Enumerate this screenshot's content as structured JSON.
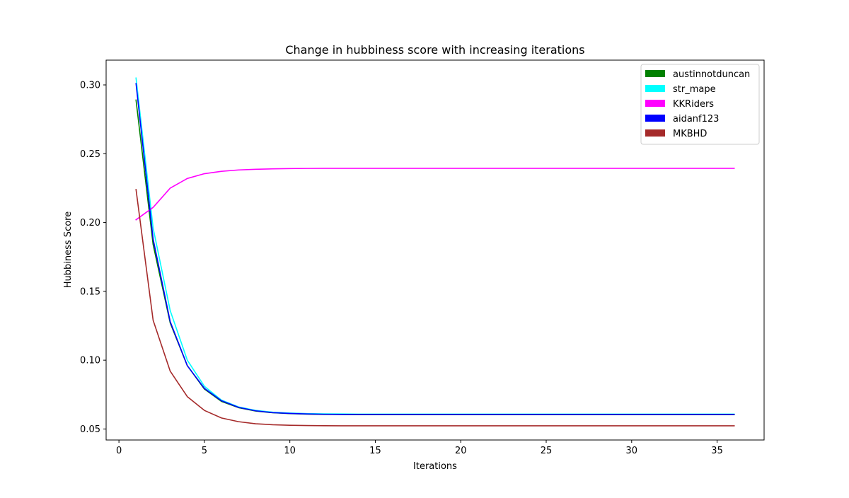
{
  "chart_data": {
    "type": "line",
    "title": "Change in hubbiness score with increasing iterations",
    "xlabel": "Iterations",
    "ylabel": "Hubbiness Score",
    "xlim": [
      -0.75,
      37.75
    ],
    "ylim": [
      0.042,
      0.318
    ],
    "xticks": [
      0,
      5,
      10,
      15,
      20,
      25,
      30,
      35
    ],
    "xtick_labels": [
      "0",
      "5",
      "10",
      "15",
      "20",
      "25",
      "30",
      "35"
    ],
    "yticks": [
      0.05,
      0.1,
      0.15,
      0.2,
      0.25,
      0.3
    ],
    "ytick_labels": [
      "0.05",
      "0.10",
      "0.15",
      "0.20",
      "0.25",
      "0.30"
    ],
    "grid": false,
    "legend_position": "top-right",
    "x": [
      1,
      2,
      3,
      4,
      5,
      6,
      7,
      8,
      9,
      10,
      11,
      12,
      13,
      14,
      15,
      16,
      17,
      18,
      19,
      20,
      21,
      22,
      23,
      24,
      25,
      26,
      27,
      28,
      29,
      30,
      31,
      32,
      33,
      34,
      35,
      36
    ],
    "series": [
      {
        "name": "austinnotduncan",
        "color": "#008000",
        "values": [
          0.289,
          0.184,
          0.127,
          0.096,
          0.079,
          0.07,
          0.0655,
          0.063,
          0.0618,
          0.0612,
          0.0608,
          0.0606,
          0.0605,
          0.0604,
          0.0604,
          0.0604,
          0.0604,
          0.0604,
          0.0604,
          0.0604,
          0.0604,
          0.0604,
          0.0604,
          0.0604,
          0.0604,
          0.0604,
          0.0604,
          0.0604,
          0.0604,
          0.0604,
          0.0604,
          0.0604,
          0.0604,
          0.0604,
          0.0604,
          0.0604
        ]
      },
      {
        "name": "str_mape",
        "color": "#00ffff",
        "values": [
          0.305,
          0.196,
          0.136,
          0.1,
          0.081,
          0.071,
          0.066,
          0.0635,
          0.0622,
          0.0616,
          0.0612,
          0.061,
          0.0609,
          0.0608,
          0.0608,
          0.0608,
          0.0608,
          0.0608,
          0.0608,
          0.0608,
          0.0608,
          0.0608,
          0.0608,
          0.0608,
          0.0608,
          0.0608,
          0.0608,
          0.0608,
          0.0608,
          0.0608,
          0.0608,
          0.0608,
          0.0608,
          0.0608,
          0.0608,
          0.0608
        ]
      },
      {
        "name": "KKRiders",
        "color": "#ff00ff",
        "values": [
          0.202,
          0.211,
          0.225,
          0.232,
          0.2355,
          0.2372,
          0.2382,
          0.2387,
          0.239,
          0.2392,
          0.2393,
          0.2394,
          0.2394,
          0.2394,
          0.2394,
          0.2394,
          0.2394,
          0.2394,
          0.2394,
          0.2394,
          0.2394,
          0.2394,
          0.2394,
          0.2394,
          0.2394,
          0.2394,
          0.2394,
          0.2394,
          0.2394,
          0.2394,
          0.2394,
          0.2394,
          0.2394,
          0.2394,
          0.2394,
          0.2394
        ]
      },
      {
        "name": "aidanf123",
        "color": "#0000ff",
        "values": [
          0.301,
          0.188,
          0.128,
          0.096,
          0.0795,
          0.0705,
          0.0657,
          0.0632,
          0.0619,
          0.0613,
          0.0609,
          0.0607,
          0.0606,
          0.0606,
          0.0606,
          0.0606,
          0.0606,
          0.0606,
          0.0606,
          0.0606,
          0.0606,
          0.0606,
          0.0606,
          0.0606,
          0.0606,
          0.0606,
          0.0606,
          0.0606,
          0.0606,
          0.0606,
          0.0606,
          0.0606,
          0.0606,
          0.0606,
          0.0606,
          0.0606
        ]
      },
      {
        "name": "MKBHD",
        "color": "#a52a2a",
        "values": [
          0.224,
          0.129,
          0.092,
          0.0735,
          0.0635,
          0.058,
          0.0553,
          0.0538,
          0.0531,
          0.0527,
          0.0525,
          0.0524,
          0.0523,
          0.0523,
          0.0523,
          0.0523,
          0.0523,
          0.0523,
          0.0523,
          0.0523,
          0.0523,
          0.0523,
          0.0523,
          0.0523,
          0.0523,
          0.0523,
          0.0523,
          0.0523,
          0.0523,
          0.0523,
          0.0523,
          0.0523,
          0.0523,
          0.0523,
          0.0523,
          0.0523
        ]
      }
    ]
  }
}
